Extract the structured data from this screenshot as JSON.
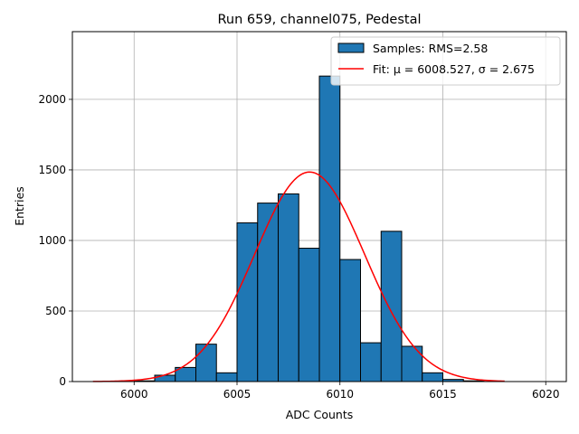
{
  "chart_data": {
    "type": "bar",
    "title": "Run 659, channel075, Pedestal",
    "xlabel": "ADC Counts",
    "ylabel": "Entries",
    "xlim": [
      5997.0,
      6021.0
    ],
    "ylim": [
      0,
      2480
    ],
    "xticks": [
      6000,
      6005,
      6010,
      6015,
      6020
    ],
    "yticks": [
      0,
      500,
      1000,
      1500,
      2000
    ],
    "grid": true,
    "legend_position": "top-right",
    "bin_width": 1.0,
    "bins": [
      {
        "start": 6000,
        "value": 5
      },
      {
        "start": 6001,
        "value": 45
      },
      {
        "start": 6002,
        "value": 100
      },
      {
        "start": 6003,
        "value": 265
      },
      {
        "start": 6004,
        "value": 62
      },
      {
        "start": 6005,
        "value": 1125
      },
      {
        "start": 6006,
        "value": 1265
      },
      {
        "start": 6007,
        "value": 1330
      },
      {
        "start": 6008,
        "value": 945
      },
      {
        "start": 6009,
        "value": 2165
      },
      {
        "start": 6010,
        "value": 865
      },
      {
        "start": 6011,
        "value": 275
      },
      {
        "start": 6012,
        "value": 1065
      },
      {
        "start": 6013,
        "value": 250
      },
      {
        "start": 6014,
        "value": 62
      },
      {
        "start": 6015,
        "value": 15
      },
      {
        "start": 6016,
        "value": 5
      }
    ],
    "series": [
      {
        "name": "Samples: RMS=2.58",
        "kind": "histogram",
        "color": "#1f77b4",
        "edge_color": "#000000"
      },
      {
        "name": "Fit: μ = 6008.527, σ = 2.675",
        "kind": "gaussian-fit",
        "color": "#ff0000",
        "mu": 6008.527,
        "sigma": 2.675,
        "amplitude": 1485,
        "x_range": [
          5998,
          6018
        ]
      }
    ]
  }
}
